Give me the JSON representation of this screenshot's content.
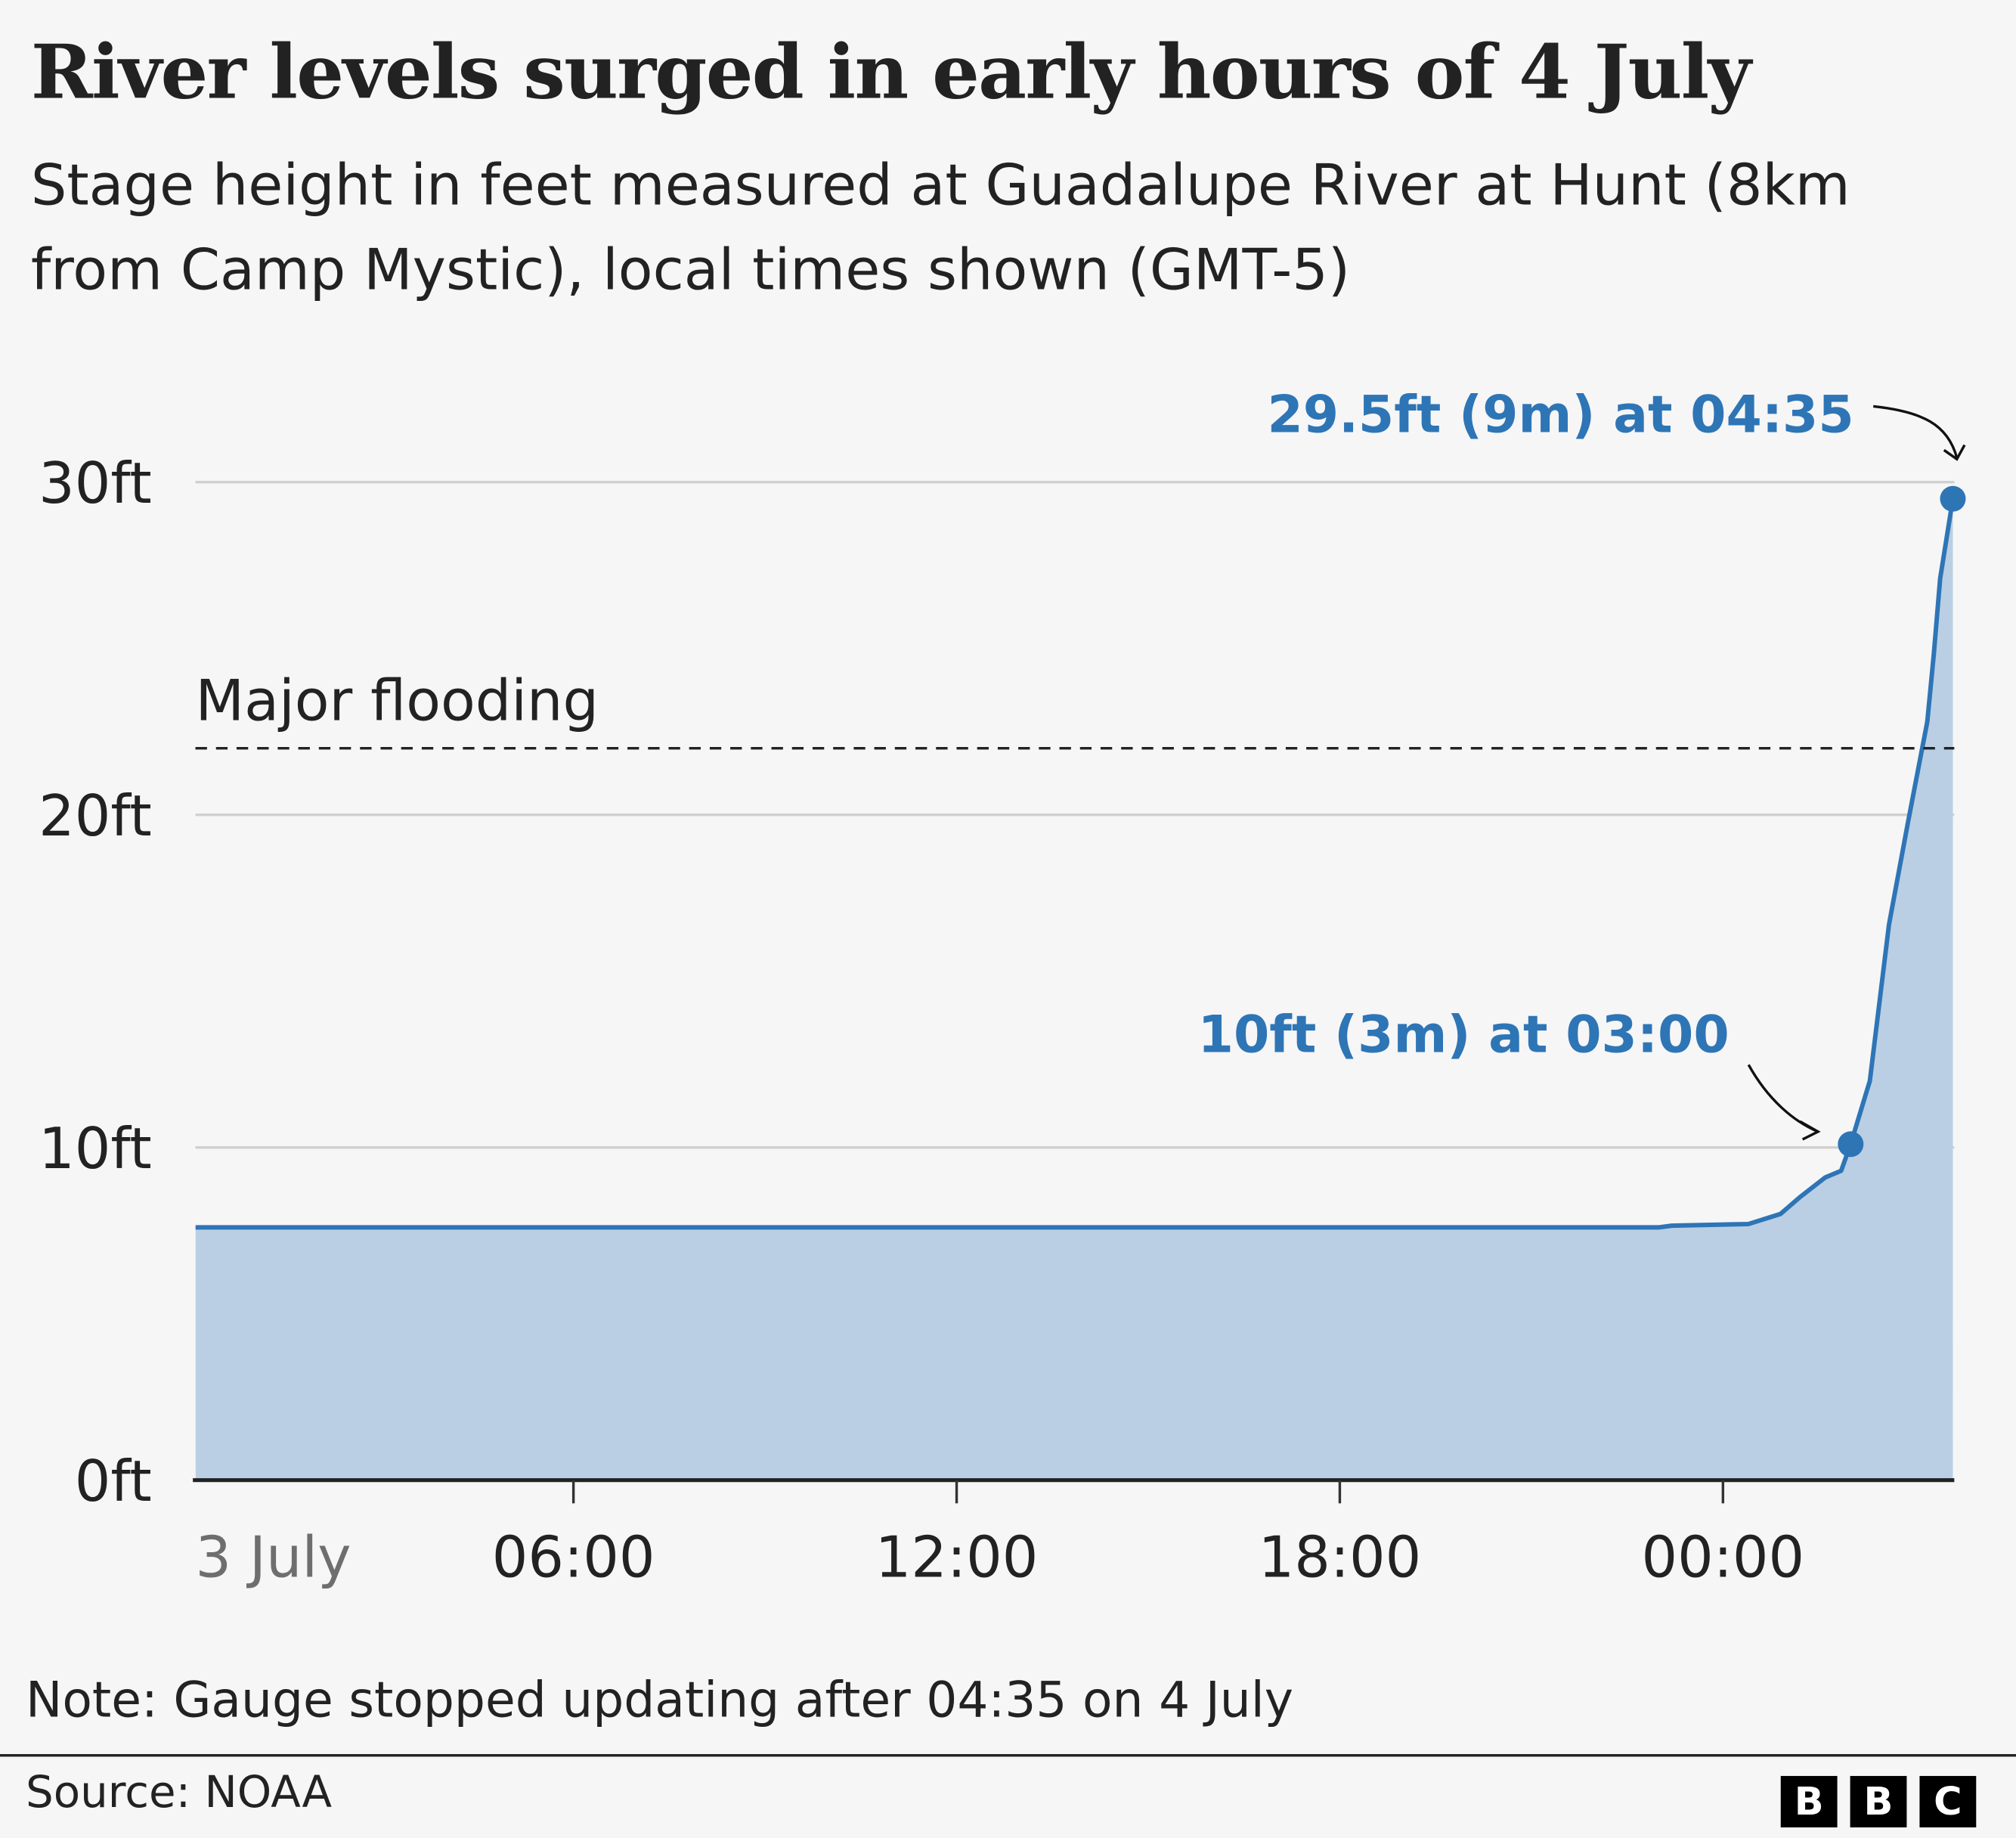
{
  "chart_data": {
    "type": "area",
    "title": "River levels surged in early hours of 4 July",
    "subtitle": "Stage height in feet measured at Guadalupe River at Hunt (8km from Camp Mystic), local times shown (GMT-5)",
    "xlabel": "",
    "ylabel": "",
    "ylim": [
      0,
      30
    ],
    "xlim": [
      "3 July 00:00",
      "4 July 03:36"
    ],
    "y_ticks": [
      "0ft",
      "10ft",
      "20ft",
      "30ft"
    ],
    "x_ticks": [
      {
        "label": "3 July",
        "at": "3 July 00:00",
        "muted": true
      },
      {
        "label": "06:00",
        "at": "3 July 06:00"
      },
      {
        "label": "12:00",
        "at": "3 July 12:00"
      },
      {
        "label": "18:00",
        "at": "3 July 18:00"
      },
      {
        "label": "00:00",
        "at": "4 July 00:00"
      }
    ],
    "grid": true,
    "series": [
      {
        "color": "#2e75b6",
        "fill": "#bacfe3",
        "points": [
          {
            "x": "3 July 00:05",
            "y": 7.6
          },
          {
            "x": "3 July 06:00",
            "y": 7.6
          },
          {
            "x": "3 July 12:00",
            "y": 7.6
          },
          {
            "x": "3 July 18:00",
            "y": 7.6
          },
          {
            "x": "3 July 23:00",
            "y": 7.6
          },
          {
            "x": "3 July 23:12",
            "y": 7.65
          },
          {
            "x": "4 July 00:24",
            "y": 7.7
          },
          {
            "x": "4 July 00:54",
            "y": 8.0
          },
          {
            "x": "4 July 01:12",
            "y": 8.5
          },
          {
            "x": "4 July 01:36",
            "y": 9.1
          },
          {
            "x": "4 July 01:51",
            "y": 9.3
          },
          {
            "x": "4 July 02:00",
            "y": 10.1
          },
          {
            "x": "4 July 02:18",
            "y": 12.0
          },
          {
            "x": "4 July 02:36",
            "y": 16.7
          },
          {
            "x": "4 July 02:54",
            "y": 19.8
          },
          {
            "x": "4 July 03:12",
            "y": 22.8
          },
          {
            "x": "4 July 03:18",
            "y": 24.8
          },
          {
            "x": "4 July 03:24",
            "y": 27.1
          },
          {
            "x": "4 July 03:36",
            "y": 29.5
          }
        ]
      }
    ],
    "reference_line": {
      "label": "Major flooding",
      "y": 22
    },
    "annotations": [
      {
        "text": "10ft (3m) at 03:00",
        "x": "4 July 02:00",
        "y": 10.1
      },
      {
        "text": "29.5ft (9m) at 04:35",
        "x": "4 July 03:36",
        "y": 29.5
      }
    ],
    "annotation_color": "#2e75b6"
  },
  "footer": {
    "note": "Note: Gauge stopped updating after 04:35 on 4 July",
    "source": "Source: NOAA",
    "logo": [
      "B",
      "B",
      "C"
    ]
  }
}
